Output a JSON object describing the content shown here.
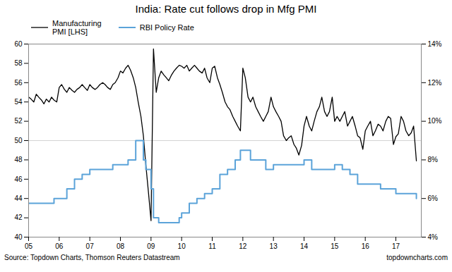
{
  "chart_data": {
    "type": "line",
    "title": "India: Rate cut follows drop in Mfg PMI",
    "annotations": [
      "Source: Topdown Charts, Thomson Reuters Datastream",
      "topdowncharts.com"
    ],
    "legend": "upper left",
    "grid": false,
    "reference_line": 50,
    "xlim": [
      2005,
      2017.83
    ],
    "xticks": [
      {
        "value": 2005,
        "label": "05"
      },
      {
        "value": 2006,
        "label": "06"
      },
      {
        "value": 2007,
        "label": "07"
      },
      {
        "value": 2008,
        "label": "08"
      },
      {
        "value": 2009,
        "label": "09"
      },
      {
        "value": 2010,
        "label": "10"
      },
      {
        "value": 2011,
        "label": "11"
      },
      {
        "value": 2012,
        "label": "12"
      },
      {
        "value": 2013,
        "label": "13"
      },
      {
        "value": 2014,
        "label": "14"
      },
      {
        "value": 2015,
        "label": "15"
      },
      {
        "value": 2016,
        "label": "16"
      },
      {
        "value": 2017,
        "label": "17"
      }
    ],
    "ylim": [
      40,
      60
    ],
    "yticks": [
      40,
      42,
      44,
      46,
      48,
      50,
      52,
      54,
      56,
      58,
      60
    ],
    "y2lim": [
      4,
      14
    ],
    "y2ticks": [
      {
        "value": 4,
        "label": "4%"
      },
      {
        "value": 6,
        "label": "6%"
      },
      {
        "value": 8,
        "label": "8%"
      },
      {
        "value": 10,
        "label": "10%"
      },
      {
        "value": 12,
        "label": "12%"
      },
      {
        "value": 14,
        "label": "14%"
      }
    ],
    "series": [
      {
        "name": "Manufacturing\nPMI [LHS]",
        "color": "#000000",
        "type": "line",
        "x": [
          2005.0,
          2005.08,
          2005.17,
          2005.25,
          2005.33,
          2005.42,
          2005.5,
          2005.58,
          2005.67,
          2005.75,
          2005.83,
          2005.92,
          2006.0,
          2006.08,
          2006.17,
          2006.25,
          2006.33,
          2006.42,
          2006.5,
          2006.58,
          2006.67,
          2006.75,
          2006.83,
          2006.92,
          2007.0,
          2007.08,
          2007.17,
          2007.25,
          2007.33,
          2007.42,
          2007.5,
          2007.58,
          2007.67,
          2007.75,
          2007.83,
          2007.92,
          2008.0,
          2008.08,
          2008.17,
          2008.25,
          2008.33,
          2008.42,
          2008.5,
          2008.58,
          2008.67,
          2008.75,
          2008.83,
          2008.92,
          2009.0,
          2009.08,
          2009.17,
          2009.25,
          2009.33,
          2009.42,
          2009.5,
          2009.58,
          2009.67,
          2009.75,
          2009.83,
          2009.92,
          2010.0,
          2010.08,
          2010.17,
          2010.25,
          2010.33,
          2010.42,
          2010.5,
          2010.58,
          2010.67,
          2010.75,
          2010.83,
          2010.92,
          2011.0,
          2011.08,
          2011.17,
          2011.25,
          2011.33,
          2011.42,
          2011.5,
          2011.58,
          2011.67,
          2011.75,
          2011.83,
          2011.92,
          2012.0,
          2012.08,
          2012.17,
          2012.25,
          2012.33,
          2012.42,
          2012.5,
          2012.58,
          2012.67,
          2012.75,
          2012.83,
          2012.92,
          2013.0,
          2013.08,
          2013.17,
          2013.25,
          2013.33,
          2013.42,
          2013.5,
          2013.58,
          2013.67,
          2013.75,
          2013.83,
          2013.92,
          2014.0,
          2014.08,
          2014.17,
          2014.25,
          2014.33,
          2014.42,
          2014.5,
          2014.58,
          2014.67,
          2014.75,
          2014.83,
          2014.92,
          2015.0,
          2015.08,
          2015.17,
          2015.25,
          2015.33,
          2015.42,
          2015.5,
          2015.58,
          2015.67,
          2015.75,
          2015.83,
          2015.92,
          2016.0,
          2016.08,
          2016.17,
          2016.25,
          2016.33,
          2016.42,
          2016.5,
          2016.58,
          2016.67,
          2016.75,
          2016.83,
          2016.92,
          2017.0,
          2017.08,
          2017.17,
          2017.25,
          2017.33,
          2017.42,
          2017.5,
          2017.58,
          2017.67
        ],
        "values": [
          54.5,
          54.3,
          54.0,
          54.8,
          54.5,
          54.2,
          53.8,
          54.3,
          54.0,
          54.5,
          54.2,
          54.0,
          55.5,
          55.8,
          55.3,
          55.0,
          55.5,
          55.2,
          55.0,
          55.3,
          55.5,
          55.8,
          55.5,
          55.2,
          55.8,
          55.5,
          55.3,
          55.5,
          55.8,
          56.0,
          55.8,
          55.5,
          55.3,
          55.8,
          56.0,
          56.5,
          57.2,
          57.0,
          57.5,
          57.8,
          57.3,
          56.5,
          55.5,
          54.0,
          52.5,
          50.5,
          47.5,
          44.5,
          41.7,
          59.5,
          55.0,
          56.5,
          57.2,
          56.8,
          56.5,
          56.2,
          56.8,
          57.2,
          57.5,
          57.8,
          57.7,
          57.5,
          57.8,
          57.2,
          57.5,
          57.8,
          57.5,
          57.2,
          57.0,
          57.5,
          56.5,
          56.0,
          57.5,
          57.7,
          56.5,
          55.8,
          55.0,
          54.0,
          53.5,
          53.2,
          52.5,
          52.0,
          51.5,
          51.0,
          57.5,
          56.5,
          54.5,
          54.0,
          54.5,
          53.5,
          53.0,
          52.5,
          52.0,
          52.5,
          53.0,
          54.5,
          53.5,
          53.0,
          52.5,
          52.0,
          50.5,
          50.0,
          50.3,
          50.5,
          49.6,
          49.2,
          48.5,
          49.5,
          51.5,
          52.5,
          51.5,
          51.0,
          52.0,
          53.0,
          53.5,
          54.5,
          53.0,
          52.5,
          53.0,
          54.5,
          52.0,
          52.5,
          52.0,
          52.5,
          53.0,
          51.5,
          52.0,
          52.5,
          51.5,
          50.5,
          50.3,
          49.1,
          51.0,
          51.5,
          52.0,
          50.5,
          51.0,
          51.7,
          51.5,
          51.0,
          52.0,
          52.5,
          52.3,
          49.6,
          50.4,
          50.7,
          52.5,
          52.0,
          51.0,
          50.5,
          50.8,
          51.5,
          47.9
        ]
      },
      {
        "name": "RBI Policy Rate",
        "color": "#5ba3d9",
        "type": "line",
        "line_style": "step",
        "axis": "y2",
        "x": [
          2005.0,
          2005.5,
          2005.83,
          2006.0,
          2006.25,
          2006.5,
          2006.75,
          2007.0,
          2007.5,
          2007.75,
          2008.0,
          2008.25,
          2008.5,
          2008.67,
          2008.75,
          2008.83,
          2009.0,
          2009.08,
          2009.25,
          2009.42,
          2009.67,
          2009.92,
          2010.0,
          2010.25,
          2010.5,
          2010.75,
          2011.0,
          2011.25,
          2011.5,
          2011.75,
          2011.92,
          2012.0,
          2012.25,
          2012.5,
          2012.75,
          2013.0,
          2013.5,
          2013.75,
          2014.0,
          2014.25,
          2014.5,
          2015.0,
          2015.25,
          2015.5,
          2015.75,
          2016.0,
          2016.5,
          2017.0,
          2017.67
        ],
        "values": [
          5.75,
          5.75,
          6.0,
          6.0,
          6.5,
          7.0,
          7.25,
          7.5,
          7.5,
          7.75,
          7.75,
          8.0,
          9.0,
          9.0,
          8.0,
          7.5,
          6.5,
          5.0,
          4.75,
          4.75,
          4.75,
          5.0,
          5.25,
          5.75,
          6.0,
          6.25,
          6.5,
          7.25,
          7.5,
          8.0,
          8.5,
          8.5,
          8.0,
          8.0,
          7.5,
          7.75,
          7.75,
          7.75,
          8.0,
          7.5,
          7.5,
          7.75,
          7.5,
          7.25,
          6.75,
          6.75,
          6.5,
          6.25,
          6.0
        ]
      }
    ]
  }
}
